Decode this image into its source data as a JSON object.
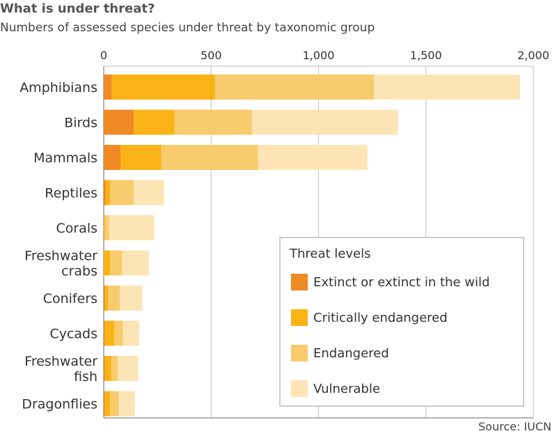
{
  "title": "What is under threat?",
  "subtitle": "Numbers of assessed species under threat by taxonomic group",
  "source": "Source: IUCN",
  "legend": {
    "title": "Threat levels",
    "placement": "bottom-right"
  },
  "colors": {
    "extinct": "#F08A24",
    "critically": "#FAB317",
    "endangered": "#F8CB6C",
    "vulnerable": "#FCE4B4",
    "grid": "#C8C8C8",
    "axis": "#999999"
  },
  "chart_data": {
    "type": "bar",
    "orientation": "horizontal",
    "stacked": true,
    "xlim": [
      0,
      2000
    ],
    "xticks": [
      0,
      500,
      1000,
      1500,
      2000
    ],
    "xtick_labels": [
      "0",
      "500",
      "1,000",
      "1,500",
      "2,000"
    ],
    "grid": true,
    "categories": [
      [
        "Amphibians"
      ],
      [
        "Birds"
      ],
      [
        "Mammals"
      ],
      [
        "Reptiles"
      ],
      [
        "Corals"
      ],
      [
        "Freshwater",
        "crabs"
      ],
      [
        "Conifers"
      ],
      [
        "Cycads"
      ],
      [
        "Freshwater",
        "fish"
      ],
      [
        "Dragonflies"
      ]
    ],
    "series": [
      {
        "name": "Extinct or extinct in the wild",
        "color_key": "extinct",
        "values": [
          38,
          140,
          78,
          8,
          0,
          0,
          5,
          5,
          5,
          5
        ]
      },
      {
        "name": "Critically endangered",
        "color_key": "critically",
        "values": [
          480,
          190,
          190,
          22,
          5,
          30,
          15,
          45,
          30,
          25
        ]
      },
      {
        "name": "Endangered",
        "color_key": "endangered",
        "values": [
          740,
          360,
          450,
          110,
          20,
          55,
          55,
          40,
          30,
          40
        ]
      },
      {
        "name": "Vulnerable",
        "color_key": "vulnerable",
        "values": [
          680,
          680,
          510,
          140,
          210,
          125,
          105,
          75,
          95,
          75
        ]
      }
    ]
  }
}
